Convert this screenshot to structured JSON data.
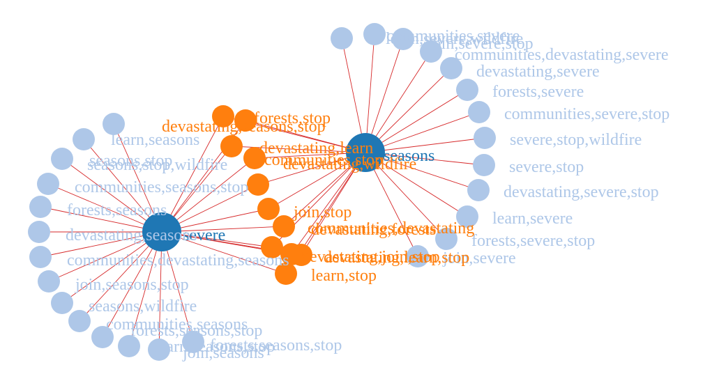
{
  "colors": {
    "hub": "#1f77b4",
    "shared": "#ff7f0e",
    "leaf": "#aec7e8",
    "link": "#d62728",
    "leaf_label": "#aec7e8",
    "shared_label": "#ff7f0e",
    "hub_label": "#1f77b4"
  },
  "graph": {
    "hubs": [
      {
        "id": "severe",
        "label": "severe"
      },
      {
        "id": "seasons",
        "label": "seasons"
      }
    ],
    "shared_nodes": [
      {
        "label": "forests,stop"
      },
      {
        "label": "devastating,seasons,stop"
      },
      {
        "label": "devastating,learn"
      },
      {
        "label": "communities,stop"
      },
      {
        "label": "devastating,wildfire"
      },
      {
        "label": "join,stop"
      },
      {
        "label": "communities,devastating"
      },
      {
        "label": "devastating,forests"
      },
      {
        "label": "devastating,join,stop"
      },
      {
        "label": "devastating,learn,stop"
      },
      {
        "label": "learn,stop"
      }
    ],
    "leaves_severe": [
      {
        "label": "communities,severe"
      },
      {
        "label": "learn,severe,wildfire"
      },
      {
        "label": "join,severe,stop"
      },
      {
        "label": "communities,devastating,severe"
      },
      {
        "label": "devastating,severe"
      },
      {
        "label": "forests,severe"
      },
      {
        "label": "communities,severe,stop"
      },
      {
        "label": "severe,stop,wildfire"
      },
      {
        "label": "severe,stop"
      },
      {
        "label": "devastating,severe,stop"
      },
      {
        "label": "learn,severe"
      },
      {
        "label": "forests,severe,stop"
      },
      {
        "label": "join,severe"
      }
    ],
    "leaves_seasons": [
      {
        "label": "learn,seasons"
      },
      {
        "label": "seasons,stop"
      },
      {
        "label": "seasons,stop,wildfire"
      },
      {
        "label": "communities,seasons,stop"
      },
      {
        "label": "forests,seasons"
      },
      {
        "label": "devastating,seasons"
      },
      {
        "label": "communities,devastating,seasons"
      },
      {
        "label": "join,seasons,stop"
      },
      {
        "label": "seasons,wildfire"
      },
      {
        "label": "communities,seasons"
      },
      {
        "label": "forests,seasons,stop"
      },
      {
        "label": "learn,seasons,stop"
      },
      {
        "label": "join,seasons"
      },
      {
        "label": "forests,seasons,stop"
      }
    ]
  }
}
